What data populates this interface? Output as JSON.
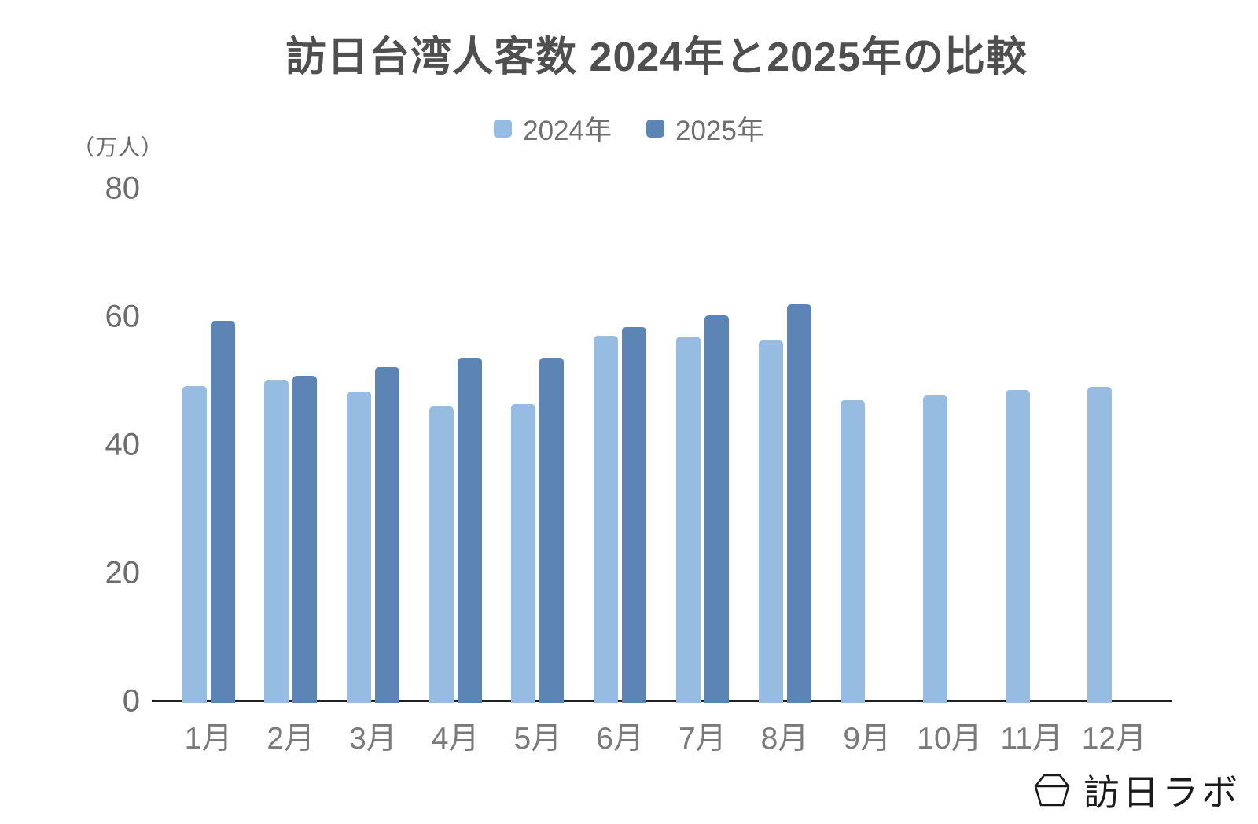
{
  "title": "訪日台湾人客数 2024年と2025年の比較",
  "y_axis_unit_label": "（万人）",
  "legend": [
    {
      "label": "2024年",
      "color": "#97BCE1"
    },
    {
      "label": "2025年",
      "color": "#5C85B6"
    }
  ],
  "logo": {
    "text": "訪日ラボ",
    "icon": "hexagon-lantern-icon"
  },
  "colors": {
    "series_2024": "#97BCE1",
    "series_2025": "#5C85B6",
    "axis_line": "#1f1f1f",
    "tick_text": "#6d6d6d",
    "title_text": "#4f4f4f"
  },
  "chart_data": {
    "type": "bar",
    "title": "訪日台湾人客数 2024年と2025年の比較",
    "xlabel": "",
    "ylabel": "（万人）",
    "categories": [
      "1月",
      "2月",
      "3月",
      "4月",
      "5月",
      "6月",
      "7月",
      "8月",
      "9月",
      "10月",
      "11月",
      "12月"
    ],
    "series": [
      {
        "name": "2024年",
        "color": "#97BCE1",
        "values": [
          49.2,
          50.2,
          48.4,
          46.0,
          46.4,
          57.1,
          57.0,
          56.3,
          47.0,
          47.8,
          48.6,
          49.1
        ]
      },
      {
        "name": "2025年",
        "color": "#5C85B6",
        "values": [
          59.4,
          50.8,
          52.2,
          53.7,
          53.7,
          58.4,
          60.3,
          62.0,
          null,
          null,
          null,
          null
        ]
      }
    ],
    "y_ticks": [
      0,
      20,
      40,
      60,
      80
    ],
    "ylim": [
      0,
      80
    ],
    "grid": false,
    "legend_position": "top"
  }
}
